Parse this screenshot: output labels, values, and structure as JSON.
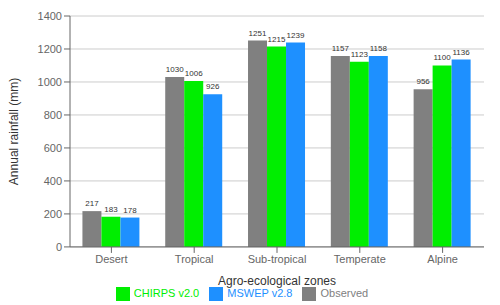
{
  "chart_data": {
    "type": "bar",
    "xlabel": "Agro-ecological zones",
    "ylabel": "Annual rainfall (mm)",
    "categories": [
      "Desert",
      "Tropical",
      "Sub-tropical",
      "Temperate",
      "Alpine"
    ],
    "series": [
      {
        "name": "Observed",
        "color": "#808080",
        "values": [
          217,
          1030,
          1251,
          1157,
          956
        ]
      },
      {
        "name": "CHIRPS v2.0",
        "color": "#00ee00",
        "values": [
          183,
          1006,
          1215,
          1123,
          1100
        ]
      },
      {
        "name": "MSWEP v2.8",
        "color": "#1e90ff",
        "values": [
          178,
          926,
          1239,
          1158,
          1136
        ]
      }
    ],
    "ylim": [
      0,
      1400
    ],
    "yticks": [
      0,
      200,
      400,
      600,
      800,
      1000,
      1200,
      1400
    ],
    "grid": true,
    "legend": "bottom",
    "data_labels": true
  }
}
